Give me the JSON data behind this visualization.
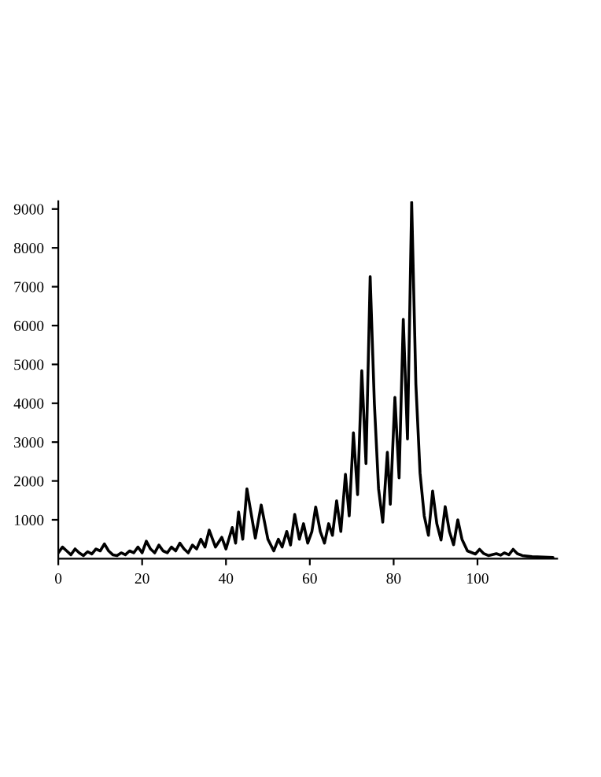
{
  "chart_data": {
    "type": "line",
    "x": [
      0,
      1,
      2,
      3,
      4,
      5,
      6,
      7,
      8,
      9,
      10,
      11,
      12,
      13,
      14,
      15,
      16,
      17,
      18,
      19,
      20,
      21,
      22,
      23,
      24,
      25,
      26,
      27,
      28,
      29,
      30,
      31,
      32,
      33,
      34,
      35,
      36,
      37.5,
      39,
      40,
      41.5,
      42.3,
      43,
      44,
      45,
      47,
      48.4,
      50,
      51.4,
      52.5,
      53.4,
      54.5,
      55.4,
      56.4,
      57.5,
      58.5,
      59.5,
      60.5,
      61.4,
      62.5,
      63.5,
      64.5,
      65.4,
      66.4,
      67.4,
      68.5,
      69.4,
      70.4,
      71.4,
      72.4,
      73.4,
      74.4,
      75.4,
      76.4,
      77.4,
      78.5,
      79.2,
      80.3,
      81.3,
      82.3,
      83.3,
      84.3,
      85.3,
      86.3,
      87.3,
      88.3,
      89.3,
      90.3,
      91.3,
      92.3,
      93.3,
      94.3,
      95.3,
      96.3,
      97.6,
      99.5,
      100.5,
      101.5,
      102.6,
      104.5,
      105.5,
      106.4,
      107.5,
      108.5,
      109.5,
      110.7,
      113,
      118
    ],
    "series": [
      {
        "color": "#000000",
        "values": [
          150,
          300,
          200,
          100,
          250,
          150,
          80,
          180,
          120,
          250,
          200,
          380,
          200,
          100,
          80,
          150,
          100,
          200,
          150,
          300,
          150,
          450,
          250,
          150,
          350,
          200,
          150,
          300,
          200,
          400,
          250,
          150,
          350,
          250,
          500,
          300,
          735,
          300,
          550,
          250,
          800,
          400,
          1200,
          500,
          1800,
          530,
          1380,
          500,
          200,
          500,
          300,
          700,
          350,
          1140,
          500,
          900,
          400,
          700,
          1330,
          700,
          400,
          900,
          600,
          1490,
          700,
          2170,
          1100,
          3240,
          1650,
          4840,
          2450,
          7260,
          4000,
          1800,
          940,
          2740,
          1400,
          4150,
          2080,
          6160,
          3080,
          9170,
          4500,
          2200,
          1100,
          600,
          1740,
          900,
          480,
          1340,
          700,
          360,
          1000,
          500,
          200,
          120,
          240,
          130,
          80,
          130,
          90,
          150,
          100,
          240,
          130,
          80,
          50,
          30
        ]
      }
    ],
    "xlim": [
      0,
      119
    ],
    "ylim": [
      0,
      9200
    ],
    "xticks": [
      0,
      20,
      40,
      60,
      80,
      100
    ],
    "yticks": [
      1000,
      2000,
      3000,
      4000,
      5000,
      6000,
      7000,
      8000,
      9000
    ],
    "grid": false,
    "legend": false,
    "marker": "none",
    "line_style": "solid"
  }
}
